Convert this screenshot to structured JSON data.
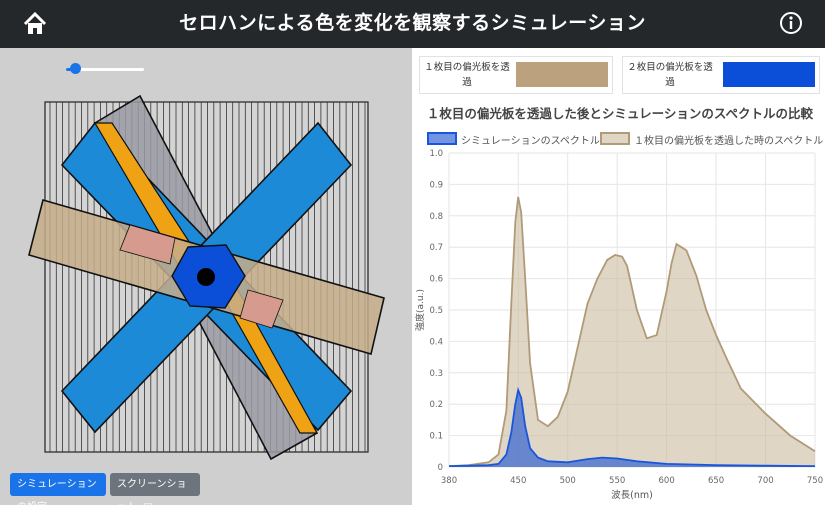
{
  "header": {
    "title": "セロハンによる色を変化を観察するシミュレーション",
    "home_icon": "home-icon",
    "info_icon": "info-icon"
  },
  "controls": {
    "slider_value": 0.05,
    "settings_button": "シミュレーションの設定",
    "screenshot_button": "スクリーンショット"
  },
  "samples": [
    {
      "label": "１枚目の偏光板を透過",
      "color": "#bca17e"
    },
    {
      "label": "２枚目の偏光板を透過",
      "color": "#0b4fd8"
    }
  ],
  "chart_data": {
    "type": "area",
    "title": "１枚目の偏光板を透過した後とシミュレーションのスペクトルの比較",
    "xlabel": "波長(nm)",
    "ylabel": "強度(a.u.)",
    "xlim": [
      380,
      750
    ],
    "ylim": [
      0,
      1.0
    ],
    "xticks": [
      380,
      450,
      500,
      550,
      600,
      650,
      700,
      750
    ],
    "yticks": [
      0,
      0.1,
      0.2,
      0.3,
      0.4,
      0.5,
      0.6,
      0.7,
      0.8,
      0.9,
      1.0
    ],
    "grid": true,
    "legend_position": "top",
    "series": [
      {
        "name": "シミュレーションのスペクトル",
        "color": "#1a56db",
        "fill": "rgba(40,90,210,0.65)",
        "x": [
          380,
          400,
          420,
          430,
          438,
          443,
          447,
          450,
          453,
          457,
          462,
          470,
          480,
          500,
          520,
          535,
          550,
          570,
          600,
          650,
          700,
          750
        ],
        "y": [
          0.003,
          0.004,
          0.006,
          0.01,
          0.04,
          0.11,
          0.2,
          0.245,
          0.22,
          0.13,
          0.06,
          0.03,
          0.018,
          0.015,
          0.025,
          0.03,
          0.027,
          0.018,
          0.01,
          0.006,
          0.004,
          0.003
        ]
      },
      {
        "name": "１枚目の偏光板を透過した時のスペクトル",
        "color": "#b09a78",
        "fill": "rgba(204,186,158,0.6)",
        "x": [
          380,
          400,
          420,
          430,
          438,
          443,
          447,
          450,
          453,
          457,
          462,
          470,
          480,
          490,
          500,
          510,
          520,
          530,
          540,
          548,
          555,
          560,
          570,
          580,
          590,
          600,
          605,
          610,
          620,
          630,
          640,
          650,
          660,
          675,
          700,
          725,
          750
        ],
        "y": [
          0.003,
          0.006,
          0.015,
          0.04,
          0.18,
          0.52,
          0.78,
          0.86,
          0.81,
          0.6,
          0.33,
          0.15,
          0.13,
          0.16,
          0.24,
          0.38,
          0.52,
          0.6,
          0.66,
          0.675,
          0.67,
          0.64,
          0.5,
          0.41,
          0.42,
          0.56,
          0.65,
          0.71,
          0.69,
          0.61,
          0.5,
          0.42,
          0.35,
          0.25,
          0.17,
          0.1,
          0.05
        ]
      }
    ]
  }
}
